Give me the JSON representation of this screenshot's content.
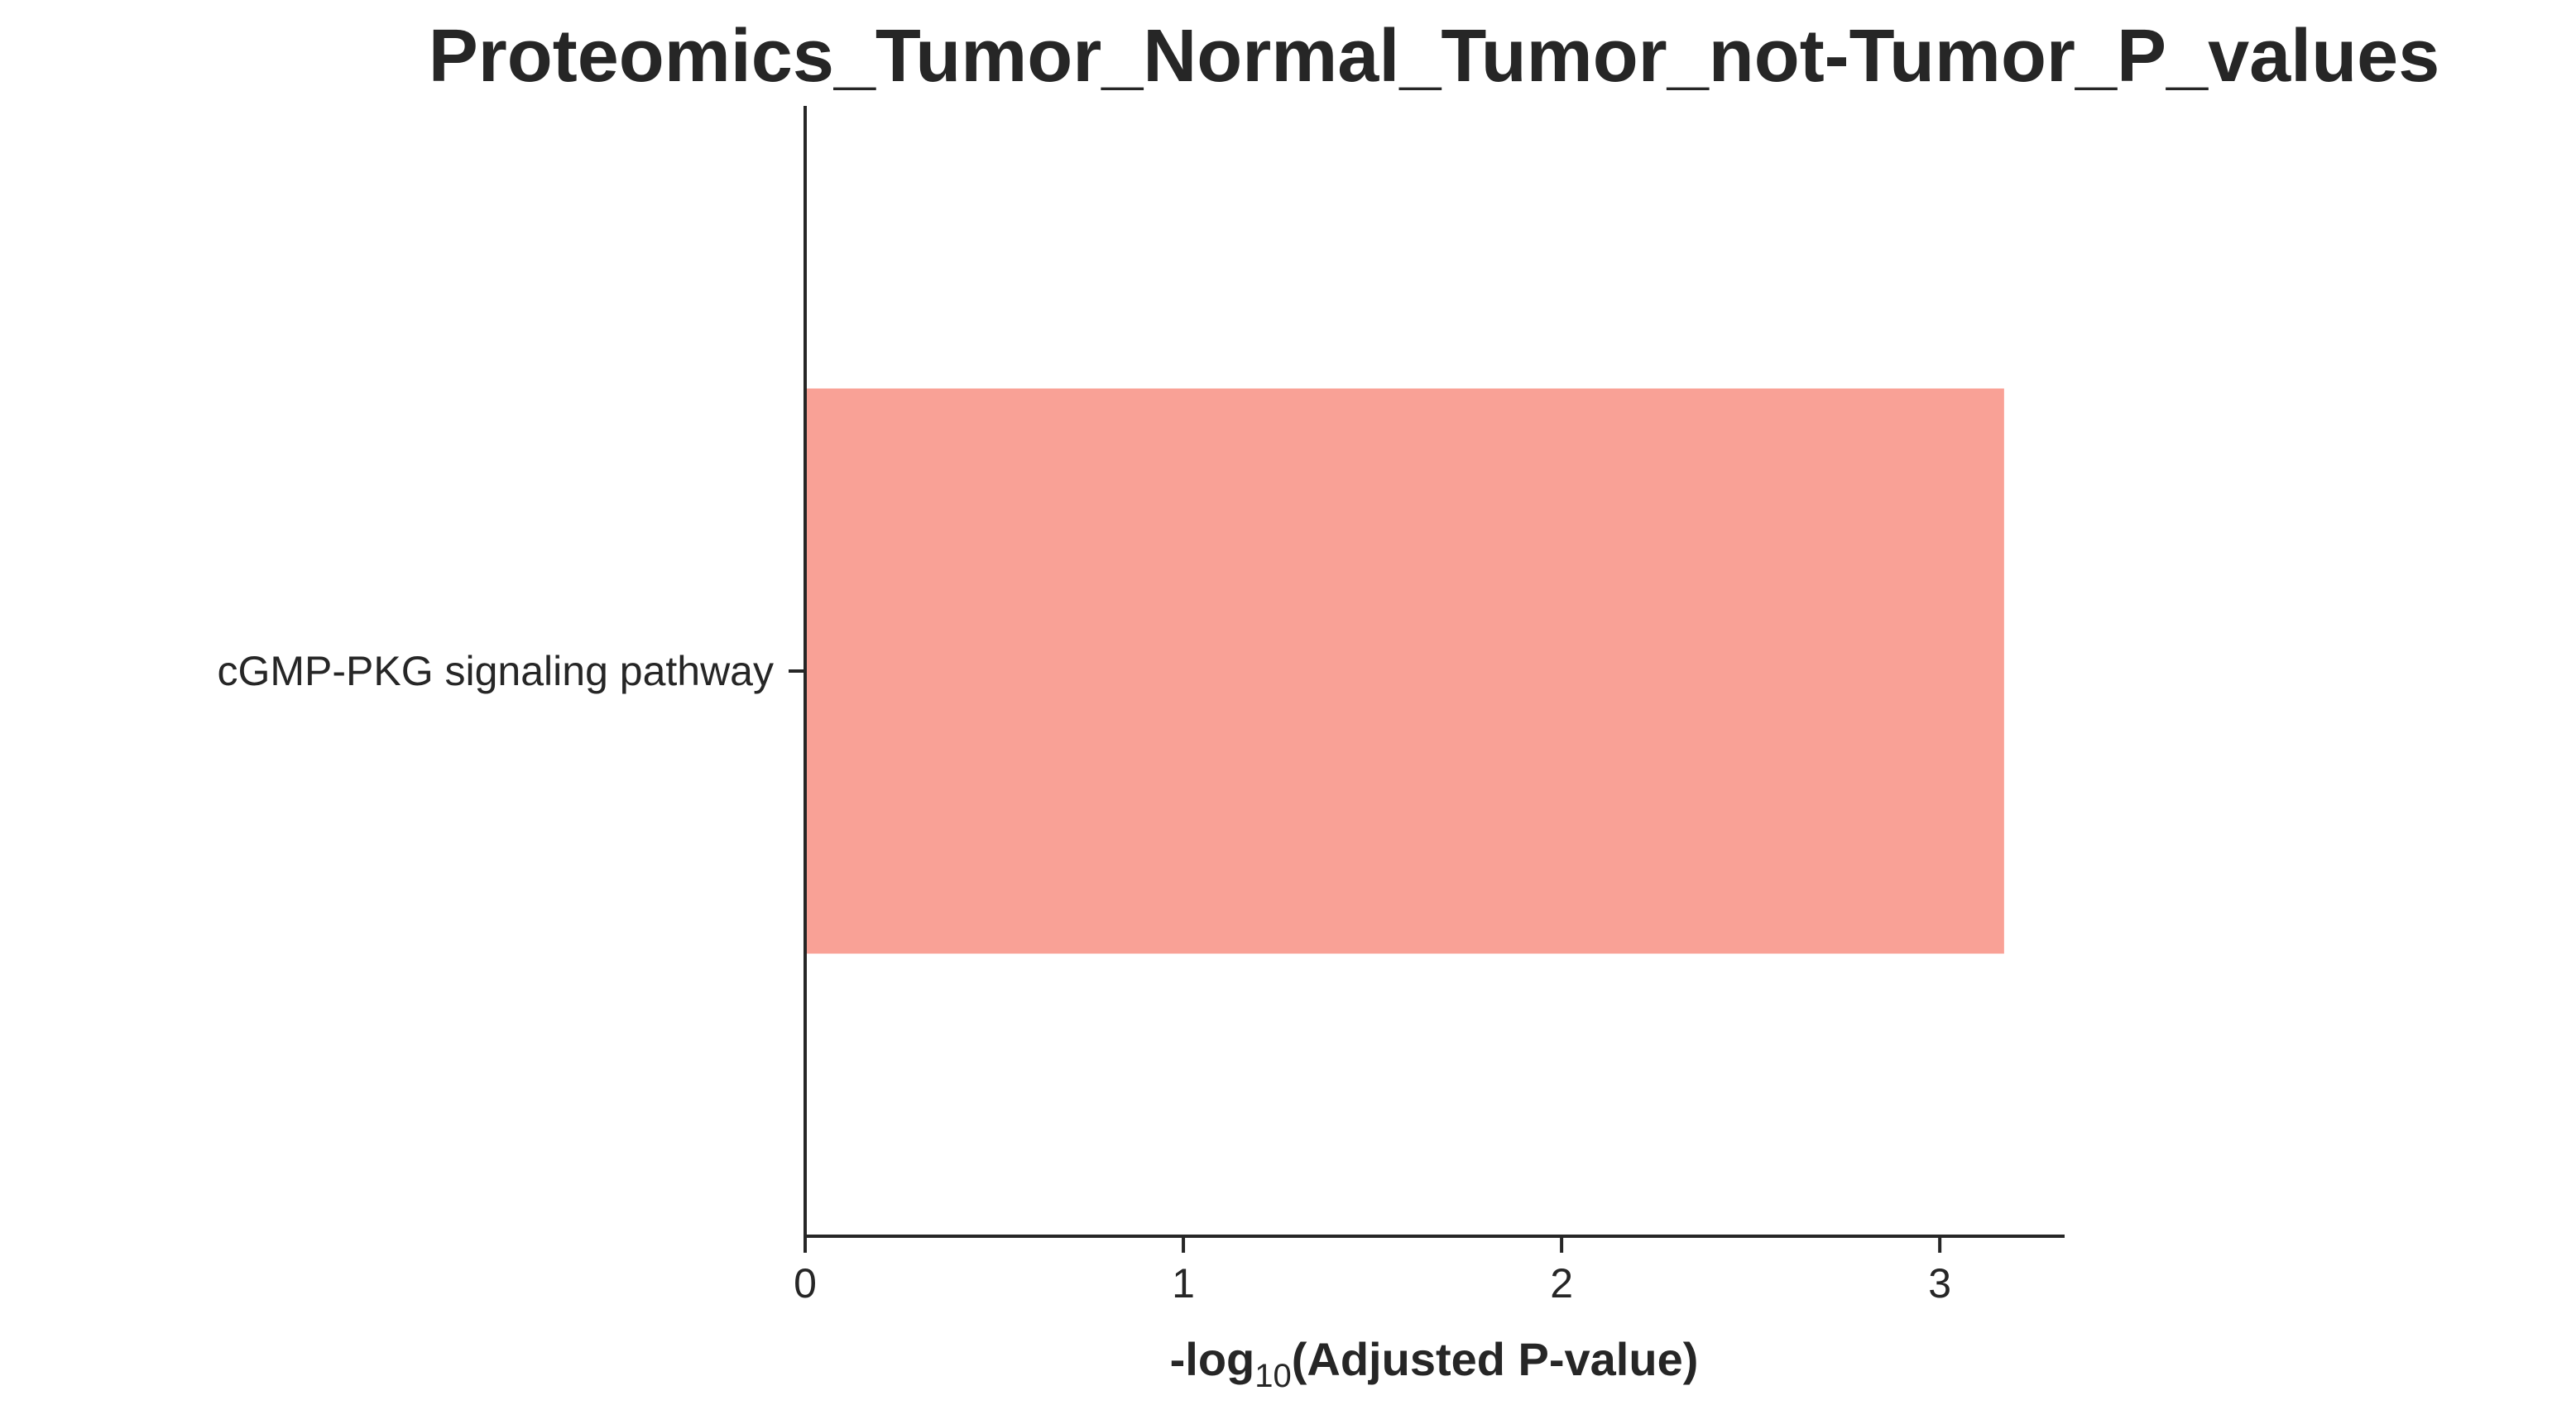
{
  "chart_data": {
    "type": "bar",
    "orientation": "horizontal",
    "title": "Proteomics_Tumor_Normal_Tumor_not-Tumor_P_values",
    "categories": [
      "cGMP-PKG signaling pathway"
    ],
    "values": [
      3.17
    ],
    "xlabel": "-log10(Adjusted P-value)",
    "xlabel_parts": {
      "prefix": "-log",
      "subscript": "10",
      "suffix": "(Adjusted P-value)"
    },
    "ylabel": "",
    "xlim": [
      0,
      3.33
    ],
    "xticks": [
      0,
      1,
      2,
      3
    ],
    "xtick_labels": [
      "0",
      "1",
      "2",
      "3"
    ],
    "grid": false,
    "bar_color": "#f9a196",
    "axis_color": "#262626"
  }
}
